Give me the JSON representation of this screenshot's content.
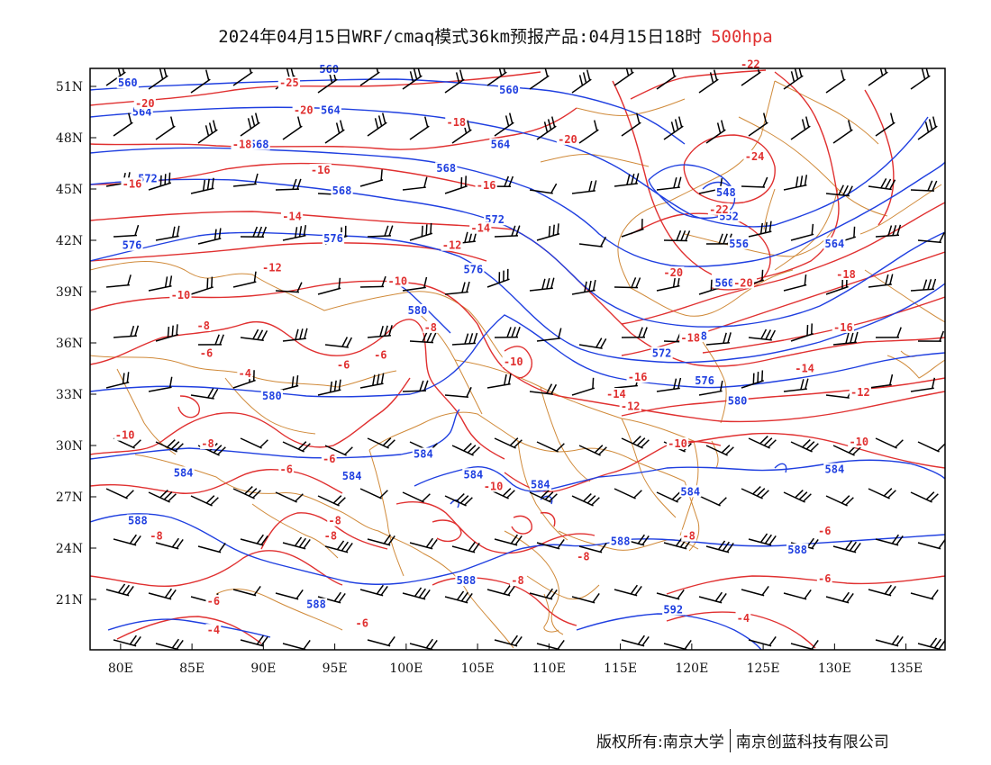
{
  "title": {
    "text": "2024年04月15日WRF/cmaq模式36km预报产品:04月15日18时",
    "level": "500hpa"
  },
  "axes": {
    "lat_labels": [
      "51N",
      "48N",
      "45N",
      "42N",
      "39N",
      "36N",
      "33N",
      "30N",
      "27N",
      "24N",
      "21N"
    ],
    "lon_labels": [
      "80E",
      "85E",
      "90E",
      "95E",
      "100E",
      "105E",
      "110E",
      "115E",
      "120E",
      "125E",
      "130E",
      "135E"
    ]
  },
  "colors": {
    "height_contour": "#1f3fe0",
    "temp_contour": "#e03030",
    "boundary": "#d08a3a",
    "wind_barb": "#000000"
  },
  "map_data": {
    "height_labels": [
      {
        "v": "560",
        "lon": 80.5,
        "lat": 51.2
      },
      {
        "v": "564",
        "lon": 81.5,
        "lat": 49.5
      },
      {
        "v": "572",
        "lon": 81.9,
        "lat": 45.6
      },
      {
        "v": "576",
        "lon": 80.8,
        "lat": 41.7
      },
      {
        "v": "580",
        "lon": 90.6,
        "lat": 32.9
      },
      {
        "v": "584",
        "lon": 84.4,
        "lat": 28.4
      },
      {
        "v": "588",
        "lon": 81.2,
        "lat": 25.6
      },
      {
        "v": "588",
        "lon": 93.7,
        "lat": 20.7
      },
      {
        "v": "560",
        "lon": 94.6,
        "lat": 52.0
      },
      {
        "v": "564",
        "lon": 94.7,
        "lat": 49.6
      },
      {
        "v": "568",
        "lon": 89.7,
        "lat": 47.6
      },
      {
        "v": "568",
        "lon": 95.5,
        "lat": 44.9
      },
      {
        "v": "576",
        "lon": 94.9,
        "lat": 42.1
      },
      {
        "v": "560",
        "lon": 107.2,
        "lat": 50.8
      },
      {
        "v": "564",
        "lon": 106.6,
        "lat": 47.6
      },
      {
        "v": "568",
        "lon": 102.8,
        "lat": 46.2
      },
      {
        "v": "572",
        "lon": 106.2,
        "lat": 43.2
      },
      {
        "v": "576",
        "lon": 104.7,
        "lat": 40.3
      },
      {
        "v": "580",
        "lon": 100.8,
        "lat": 37.9
      },
      {
        "v": "584",
        "lon": 101.2,
        "lat": 29.5
      },
      {
        "v": "584",
        "lon": 96.2,
        "lat": 28.2
      },
      {
        "v": "584",
        "lon": 104.7,
        "lat": 28.3
      },
      {
        "v": "584",
        "lon": 109.4,
        "lat": 27.7
      },
      {
        "v": "588",
        "lon": 104.2,
        "lat": 22.1
      },
      {
        "v": "568",
        "lon": 120.4,
        "lat": 36.4
      },
      {
        "v": "572",
        "lon": 117.9,
        "lat": 35.4
      },
      {
        "v": "576",
        "lon": 120.9,
        "lat": 33.8
      },
      {
        "v": "580",
        "lon": 123.2,
        "lat": 32.6
      },
      {
        "v": "584",
        "lon": 119.9,
        "lat": 27.3
      },
      {
        "v": "588",
        "lon": 115.0,
        "lat": 24.4
      },
      {
        "v": "592",
        "lon": 118.7,
        "lat": 20.4
      },
      {
        "v": "548",
        "lon": 122.4,
        "lat": 44.8
      },
      {
        "v": "552",
        "lon": 122.6,
        "lat": 43.4
      },
      {
        "v": "556",
        "lon": 123.3,
        "lat": 41.8
      },
      {
        "v": "560",
        "lon": 122.3,
        "lat": 39.5
      },
      {
        "v": "564",
        "lon": 130.0,
        "lat": 41.8
      },
      {
        "v": "584",
        "lon": 130.0,
        "lat": 28.6
      },
      {
        "v": "588",
        "lon": 127.4,
        "lat": 23.9
      }
    ],
    "temp_labels": [
      {
        "v": "-20",
        "lon": 81.7,
        "lat": 50.0
      },
      {
        "v": "-18",
        "lon": 88.5,
        "lat": 47.6
      },
      {
        "v": "-16",
        "lon": 80.8,
        "lat": 45.3
      },
      {
        "v": "-25",
        "lon": 91.8,
        "lat": 51.2
      },
      {
        "v": "-20",
        "lon": 92.8,
        "lat": 49.6
      },
      {
        "v": "-16",
        "lon": 94.0,
        "lat": 46.1
      },
      {
        "v": "-14",
        "lon": 92.0,
        "lat": 43.4
      },
      {
        "v": "-12",
        "lon": 90.6,
        "lat": 40.4
      },
      {
        "v": "-10",
        "lon": 84.2,
        "lat": 38.8
      },
      {
        "v": "-8",
        "lon": 85.8,
        "lat": 37.0
      },
      {
        "v": "-6",
        "lon": 86.0,
        "lat": 35.4
      },
      {
        "v": "-4",
        "lon": 88.7,
        "lat": 34.2
      },
      {
        "v": "-10",
        "lon": 99.4,
        "lat": 39.6
      },
      {
        "v": "-8",
        "lon": 101.7,
        "lat": 36.9
      },
      {
        "v": "-6",
        "lon": 98.2,
        "lat": 35.3
      },
      {
        "v": "-6",
        "lon": 95.6,
        "lat": 34.7
      },
      {
        "v": "-10",
        "lon": 80.3,
        "lat": 30.6
      },
      {
        "v": "-8",
        "lon": 86.1,
        "lat": 30.1
      },
      {
        "v": "-6",
        "lon": 91.6,
        "lat": 28.6
      },
      {
        "v": "-6",
        "lon": 94.6,
        "lat": 29.2
      },
      {
        "v": "-8",
        "lon": 82.5,
        "lat": 24.7
      },
      {
        "v": "-6",
        "lon": 86.5,
        "lat": 20.9
      },
      {
        "v": "-4",
        "lon": 86.5,
        "lat": 19.2
      },
      {
        "v": "-8",
        "lon": 95.0,
        "lat": 25.6
      },
      {
        "v": "-8",
        "lon": 94.7,
        "lat": 24.7
      },
      {
        "v": "-6",
        "lon": 96.9,
        "lat": 19.6
      },
      {
        "v": "-18",
        "lon": 103.5,
        "lat": 48.9
      },
      {
        "v": "-16",
        "lon": 105.6,
        "lat": 45.2
      },
      {
        "v": "-14",
        "lon": 105.2,
        "lat": 42.7
      },
      {
        "v": "-12",
        "lon": 103.2,
        "lat": 41.7
      },
      {
        "v": "-10",
        "lon": 107.5,
        "lat": 34.9
      },
      {
        "v": "-10",
        "lon": 106.1,
        "lat": 27.6
      },
      {
        "v": "-8",
        "lon": 107.8,
        "lat": 22.1
      },
      {
        "v": "-20",
        "lon": 111.3,
        "lat": 47.9
      },
      {
        "v": "-16",
        "lon": 116.2,
        "lat": 34.0
      },
      {
        "v": "-14",
        "lon": 114.7,
        "lat": 33.0
      },
      {
        "v": "-12",
        "lon": 115.7,
        "lat": 32.3
      },
      {
        "v": "-10",
        "lon": 119.0,
        "lat": 30.1
      },
      {
        "v": "-8",
        "lon": 112.4,
        "lat": 23.5
      },
      {
        "v": "-8",
        "lon": 119.8,
        "lat": 24.7
      },
      {
        "v": "-22",
        "lon": 124.1,
        "lat": 52.3
      },
      {
        "v": "-24",
        "lon": 124.4,
        "lat": 46.9
      },
      {
        "v": "-22",
        "lon": 121.9,
        "lat": 43.8
      },
      {
        "v": "-20",
        "lon": 118.7,
        "lat": 40.1
      },
      {
        "v": "-20",
        "lon": 123.6,
        "lat": 39.5
      },
      {
        "v": "-18",
        "lon": 119.9,
        "lat": 36.3
      },
      {
        "v": "-18",
        "lon": 130.8,
        "lat": 40.0
      },
      {
        "v": "-16",
        "lon": 130.6,
        "lat": 36.9
      },
      {
        "v": "-14",
        "lon": 127.9,
        "lat": 34.5
      },
      {
        "v": "-12",
        "lon": 131.8,
        "lat": 33.1
      },
      {
        "v": "-10",
        "lon": 131.7,
        "lat": 30.2
      },
      {
        "v": "-6",
        "lon": 129.3,
        "lat": 25.0
      },
      {
        "v": "-6",
        "lon": 129.3,
        "lat": 22.2
      },
      {
        "v": "-4",
        "lon": 123.6,
        "lat": 19.9
      }
    ]
  },
  "copyright": {
    "owner1": "版权所有:南京大学",
    "owner2": "南京创蓝科技有限公司"
  }
}
